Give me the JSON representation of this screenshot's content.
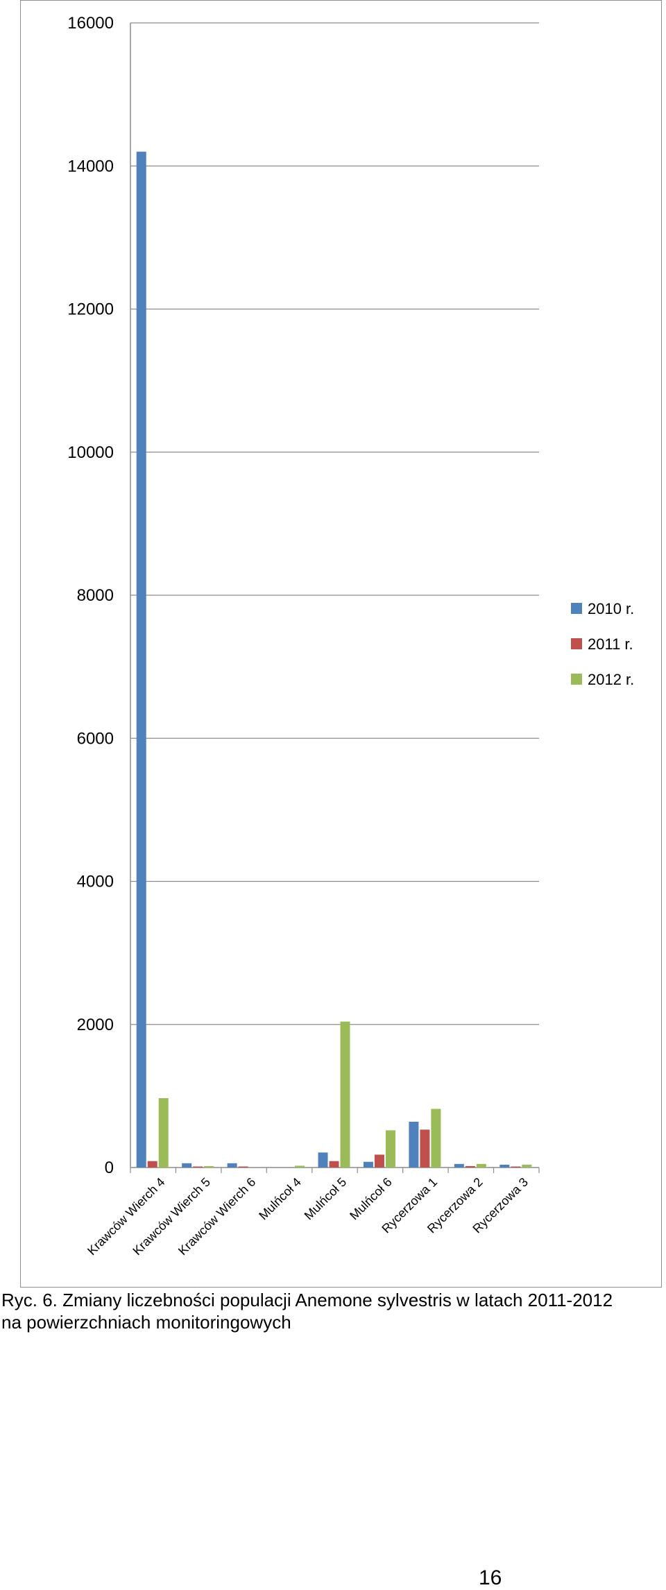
{
  "caption": {
    "line1": "Ryc. 6. Zmiany liczebności populacji Anemone sylvestris w latach 2011-2012",
    "line2": "na powierzchniach monitoringowych"
  },
  "page_number": "16",
  "chart_data": {
    "type": "bar",
    "title": "",
    "xlabel": "",
    "ylabel": "",
    "ylim": [
      0,
      16000
    ],
    "yticks": [
      0,
      2000,
      4000,
      6000,
      8000,
      10000,
      12000,
      14000,
      16000
    ],
    "grid": true,
    "legend_position": "right",
    "categories": [
      "Krawców Wierch 4",
      "Krawców Wierch 5",
      "Krawców Wierch 6",
      "Mulńcoł 4",
      "Mulńcoł 5",
      "Mulńcoł 6",
      "Rycerzowa 1",
      "Rycerzowa 2",
      "Rycerzowa 3"
    ],
    "series": [
      {
        "name": "2010 r.",
        "color": "#4f81bd",
        "values": [
          14200,
          60,
          60,
          0,
          210,
          80,
          640,
          50,
          40
        ]
      },
      {
        "name": "2011 r.",
        "color": "#c0504d",
        "values": [
          90,
          5,
          5,
          0,
          90,
          180,
          530,
          20,
          10
        ]
      },
      {
        "name": "2012 r.",
        "color": "#9bbb59",
        "values": [
          970,
          20,
          0,
          25,
          2040,
          520,
          820,
          50,
          40
        ]
      }
    ]
  }
}
